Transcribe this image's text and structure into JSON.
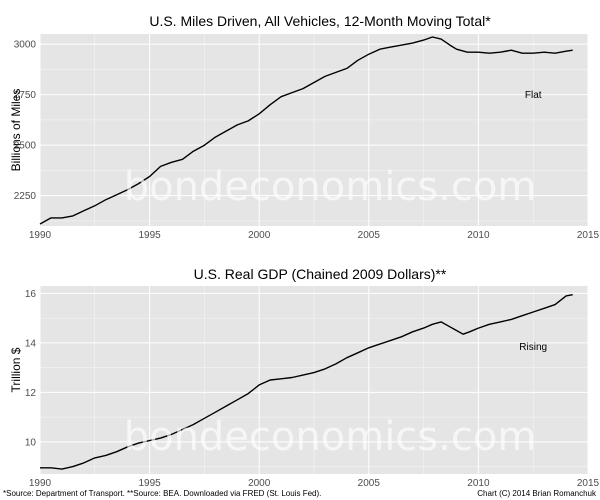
{
  "watermark": "bondeconomics.com",
  "footer": {
    "source": "*Source: Department of Transport. **Source: BEA. Downloaded via FRED (St. Louis Fed).",
    "credit": "Chart (C) 2014 Brian Romanchuk"
  },
  "colors": {
    "panel": "#e5e5e5",
    "grid": "#ffffff",
    "line": "#000000",
    "tick_text": "#4d4d4d"
  },
  "chart_data": [
    {
      "type": "line",
      "title": "U.S. Miles Driven, All Vehicles, 12-Month Moving Total*",
      "xlabel": "",
      "ylabel": "Billions of Miles",
      "xlim": [
        1990,
        2015
      ],
      "ylim": [
        2100,
        3050
      ],
      "xticks": [
        1990,
        1995,
        2000,
        2005,
        2010,
        2015
      ],
      "yticks": [
        2250,
        2500,
        2750,
        3000
      ],
      "grid": true,
      "annotation": {
        "text": "Flat",
        "x": 2012.5,
        "y": 2750
      },
      "series": [
        {
          "x": [
            1990.0,
            1990.5,
            1991.0,
            1991.5,
            1992.0,
            1992.5,
            1993.0,
            1993.5,
            1994.0,
            1994.5,
            1995.0,
            1995.5,
            1996.0,
            1996.5,
            1997.0,
            1997.5,
            1998.0,
            1998.5,
            1999.0,
            1999.5,
            2000.0,
            2000.5,
            2001.0,
            2001.5,
            2002.0,
            2002.5,
            2003.0,
            2003.5,
            2004.0,
            2004.5,
            2005.0,
            2005.5,
            2006.0,
            2006.5,
            2007.0,
            2007.5,
            2007.9,
            2008.3,
            2008.7,
            2009.0,
            2009.5,
            2010.0,
            2010.5,
            2011.0,
            2011.5,
            2012.0,
            2012.5,
            2013.0,
            2013.5,
            2014.0,
            2014.3
          ],
          "values": [
            2110,
            2140,
            2140,
            2150,
            2175,
            2200,
            2230,
            2255,
            2280,
            2310,
            2345,
            2395,
            2415,
            2430,
            2470,
            2500,
            2540,
            2570,
            2600,
            2620,
            2655,
            2700,
            2740,
            2760,
            2780,
            2810,
            2840,
            2860,
            2880,
            2920,
            2950,
            2975,
            2985,
            2995,
            3005,
            3020,
            3035,
            3025,
            2995,
            2975,
            2960,
            2960,
            2955,
            2960,
            2970,
            2955,
            2955,
            2960,
            2955,
            2965,
            2970
          ]
        }
      ]
    },
    {
      "type": "line",
      "title": "U.S. Real GDP (Chained 2009 Dollars)**",
      "xlabel": "",
      "ylabel": "Trillion $",
      "xlim": [
        1990,
        2015
      ],
      "ylim": [
        8.7,
        16.3
      ],
      "xticks": [
        1990,
        1995,
        2000,
        2005,
        2010,
        2015
      ],
      "yticks": [
        10,
        12,
        14,
        16
      ],
      "grid": true,
      "annotation": {
        "text": "Rising",
        "x": 2012.5,
        "y": 13.85
      },
      "series": [
        {
          "x": [
            1990.0,
            1990.5,
            1991.0,
            1991.5,
            1992.0,
            1992.5,
            1993.0,
            1993.5,
            1994.0,
            1994.5,
            1995.0,
            1995.5,
            1996.0,
            1996.5,
            1997.0,
            1997.5,
            1998.0,
            1998.5,
            1999.0,
            1999.5,
            2000.0,
            2000.5,
            2001.0,
            2001.5,
            2002.0,
            2002.5,
            2003.0,
            2003.5,
            2004.0,
            2004.5,
            2005.0,
            2005.5,
            2006.0,
            2006.5,
            2007.0,
            2007.5,
            2007.9,
            2008.3,
            2008.7,
            2009.0,
            2009.3,
            2009.6,
            2010.0,
            2010.5,
            2011.0,
            2011.5,
            2012.0,
            2012.5,
            2013.0,
            2013.5,
            2014.0,
            2014.3
          ],
          "values": [
            8.95,
            8.95,
            8.9,
            9.0,
            9.15,
            9.35,
            9.45,
            9.6,
            9.8,
            9.95,
            10.05,
            10.15,
            10.3,
            10.5,
            10.7,
            10.95,
            11.2,
            11.45,
            11.7,
            11.95,
            12.3,
            12.5,
            12.55,
            12.6,
            12.7,
            12.8,
            12.95,
            13.15,
            13.4,
            13.6,
            13.8,
            13.95,
            14.1,
            14.25,
            14.45,
            14.6,
            14.75,
            14.85,
            14.65,
            14.5,
            14.35,
            14.45,
            14.6,
            14.75,
            14.85,
            14.95,
            15.1,
            15.25,
            15.4,
            15.55,
            15.9,
            15.95
          ]
        }
      ]
    }
  ]
}
